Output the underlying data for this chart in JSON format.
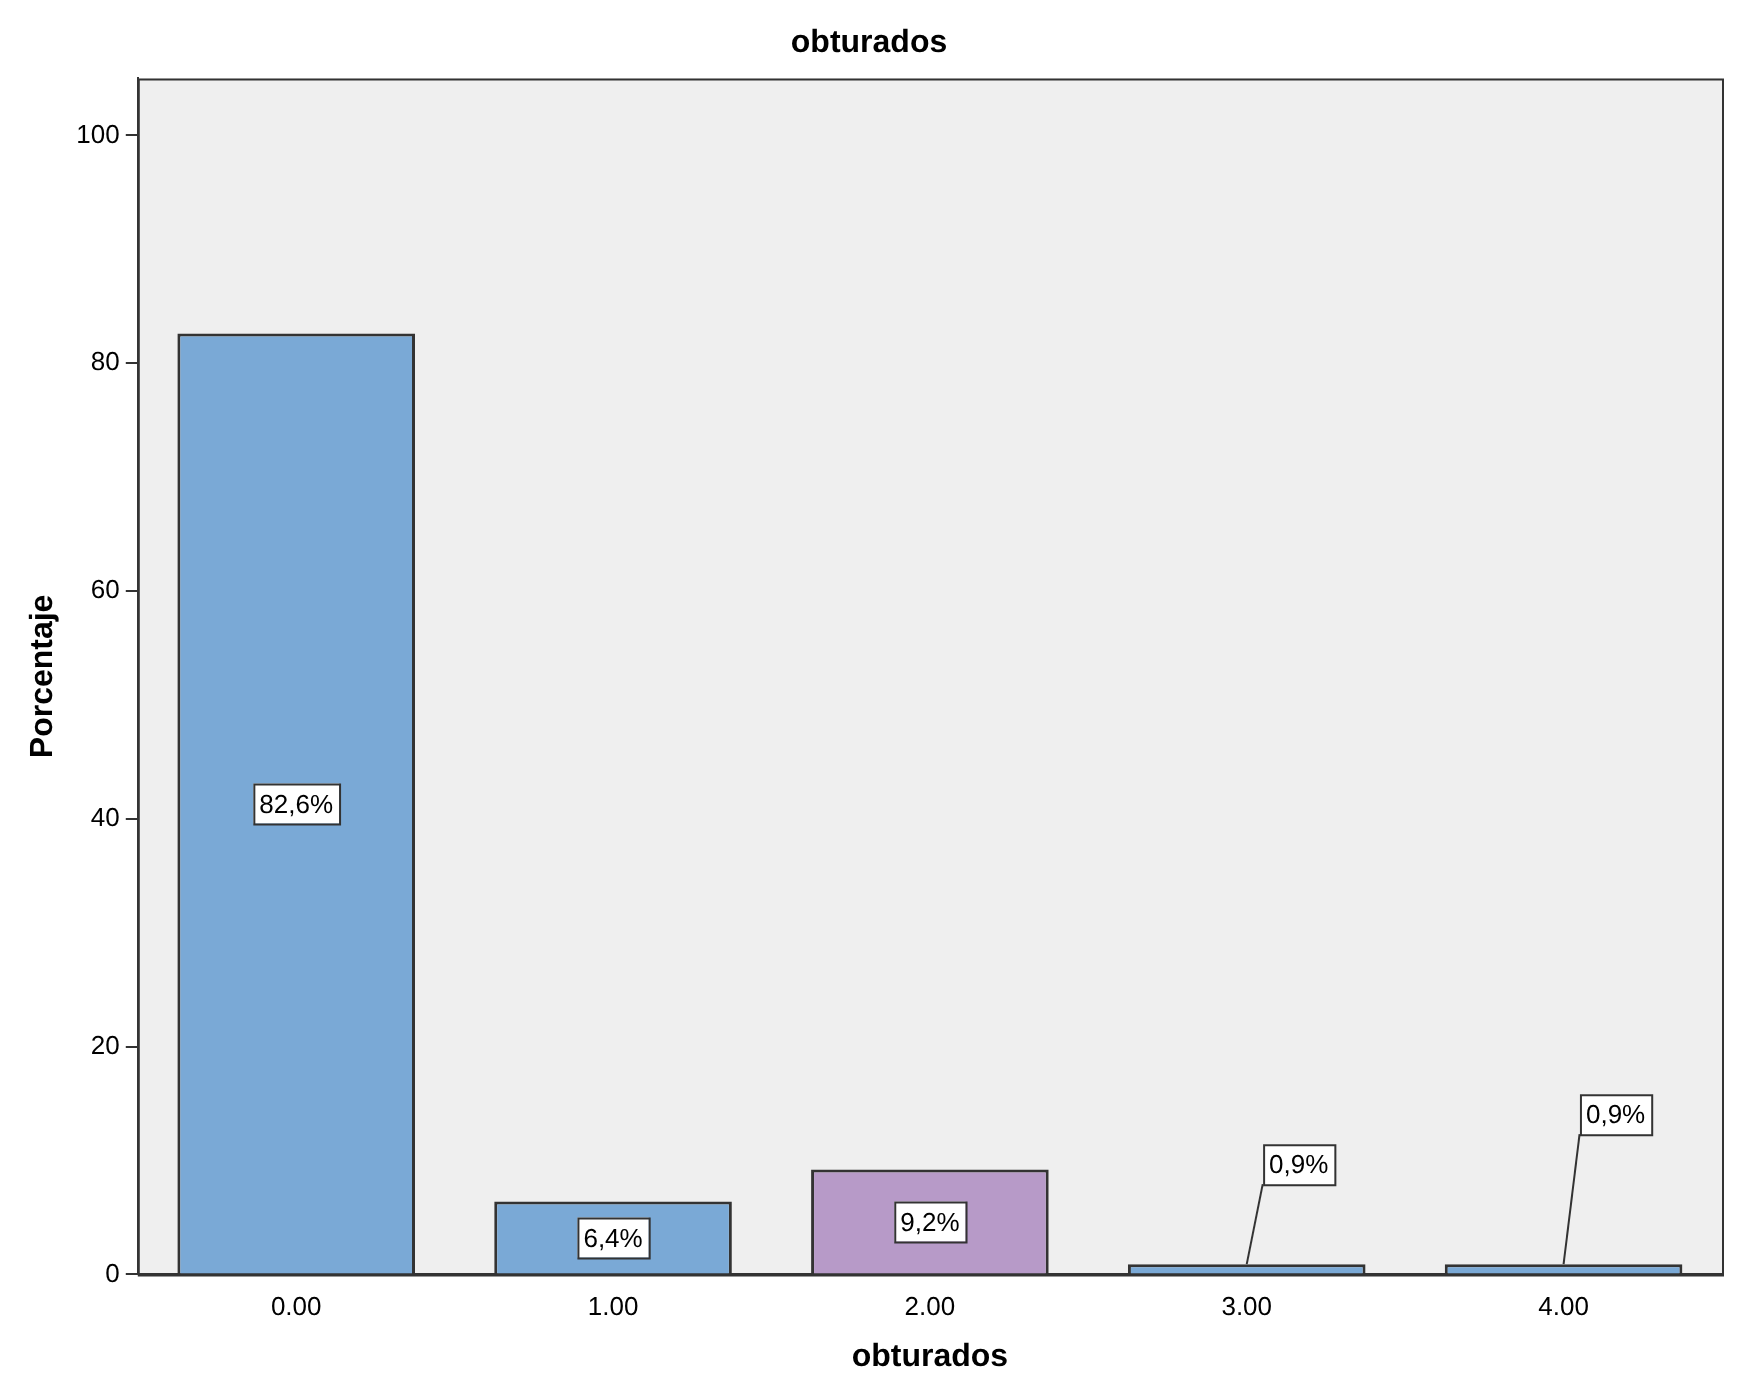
{
  "chart_data": {
    "type": "bar",
    "title": "obturados",
    "xlabel": "obturados",
    "ylabel": "Porcentaje",
    "categories": [
      "0.00",
      "1.00",
      "2.00",
      "3.00",
      "4.00"
    ],
    "values": [
      82.6,
      6.4,
      9.2,
      0.9,
      0.9
    ],
    "colors": [
      "#7aa9d6",
      "#7aa9d6",
      "#b79ac8",
      "#7aa9d6",
      "#7aa9d6"
    ],
    "value_labels": [
      "82,6%",
      "6,4%",
      "9,2%",
      "0,9%",
      "0,9%"
    ],
    "ylim": [
      0,
      105
    ],
    "yticks": [
      0,
      20,
      40,
      60,
      80,
      100
    ],
    "grid": false,
    "legend": false
  }
}
